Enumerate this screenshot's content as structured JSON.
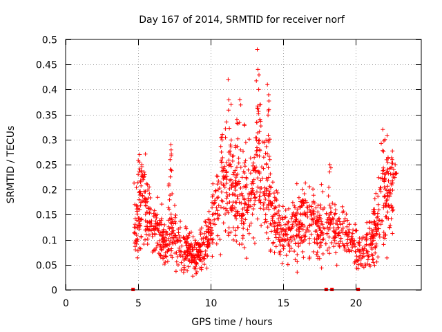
{
  "chart_data": {
    "type": "scatter",
    "title": "Day 167 of 2014, SRMTID for receiver norf",
    "xlabel": "GPS time / hours",
    "ylabel": "SRMTID / TECUs",
    "xlim": [
      0,
      24.5
    ],
    "ylim": [
      0,
      0.5
    ],
    "xticks": [
      0,
      5,
      10,
      15,
      20
    ],
    "xtick_labels": [
      "0",
      "5",
      "10",
      "15",
      "20"
    ],
    "yticks": [
      0,
      0.05,
      0.1,
      0.15,
      0.2,
      0.25,
      0.3,
      0.35,
      0.4,
      0.45,
      0.5
    ],
    "ytick_labels": [
      "0",
      "0.05",
      "0.1",
      "0.15",
      "0.2",
      "0.25",
      "0.3",
      "0.35",
      "0.4",
      "0.45",
      "0.5"
    ],
    "grid": true,
    "marker_color": "#ff0000",
    "series": [
      {
        "name": "SRMTID",
        "marker": "plus",
        "points_at_zero_x": [
          4.65,
          17.95,
          18.35,
          20.15
        ],
        "time_profile": [
          [
            4.7,
            0.14
          ],
          [
            5.0,
            0.16
          ],
          [
            5.3,
            0.18
          ],
          [
            5.5,
            0.17
          ],
          [
            5.8,
            0.13
          ],
          [
            6.2,
            0.12
          ],
          [
            6.6,
            0.1
          ],
          [
            7.0,
            0.09
          ],
          [
            7.3,
            0.13
          ],
          [
            7.6,
            0.1
          ],
          [
            8.0,
            0.08
          ],
          [
            8.5,
            0.08
          ],
          [
            9.0,
            0.07
          ],
          [
            9.5,
            0.09
          ],
          [
            9.8,
            0.1
          ],
          [
            10.2,
            0.16
          ],
          [
            10.6,
            0.2
          ],
          [
            11.0,
            0.22
          ],
          [
            11.5,
            0.19
          ],
          [
            12.0,
            0.17
          ],
          [
            12.5,
            0.18
          ],
          [
            13.0,
            0.2
          ],
          [
            13.4,
            0.22
          ],
          [
            13.8,
            0.2
          ],
          [
            14.2,
            0.16
          ],
          [
            14.6,
            0.13
          ],
          [
            15.0,
            0.11
          ],
          [
            15.5,
            0.12
          ],
          [
            16.0,
            0.13
          ],
          [
            16.5,
            0.14
          ],
          [
            17.0,
            0.13
          ],
          [
            17.5,
            0.12
          ],
          [
            18.0,
            0.12
          ],
          [
            18.5,
            0.13
          ],
          [
            19.0,
            0.12
          ],
          [
            19.5,
            0.1
          ],
          [
            20.0,
            0.09
          ],
          [
            20.3,
            0.07
          ],
          [
            20.7,
            0.08
          ],
          [
            21.0,
            0.1
          ],
          [
            21.4,
            0.13
          ],
          [
            21.8,
            0.17
          ],
          [
            22.2,
            0.18
          ],
          [
            22.6,
            0.2
          ]
        ],
        "spikes": [
          [
            5.1,
            0.27
          ],
          [
            5.25,
            0.25
          ],
          [
            7.25,
            0.29
          ],
          [
            7.2,
            0.26
          ],
          [
            10.8,
            0.31
          ],
          [
            11.2,
            0.42
          ],
          [
            11.4,
            0.37
          ],
          [
            11.8,
            0.34
          ],
          [
            12.0,
            0.38
          ],
          [
            12.3,
            0.33
          ],
          [
            13.2,
            0.48
          ],
          [
            13.25,
            0.44
          ],
          [
            13.3,
            0.4
          ],
          [
            13.9,
            0.41
          ],
          [
            14.0,
            0.36
          ],
          [
            18.2,
            0.25
          ],
          [
            21.85,
            0.32
          ],
          [
            22.0,
            0.3
          ],
          [
            22.5,
            0.26
          ],
          [
            22.7,
            0.25
          ]
        ]
      }
    ]
  }
}
